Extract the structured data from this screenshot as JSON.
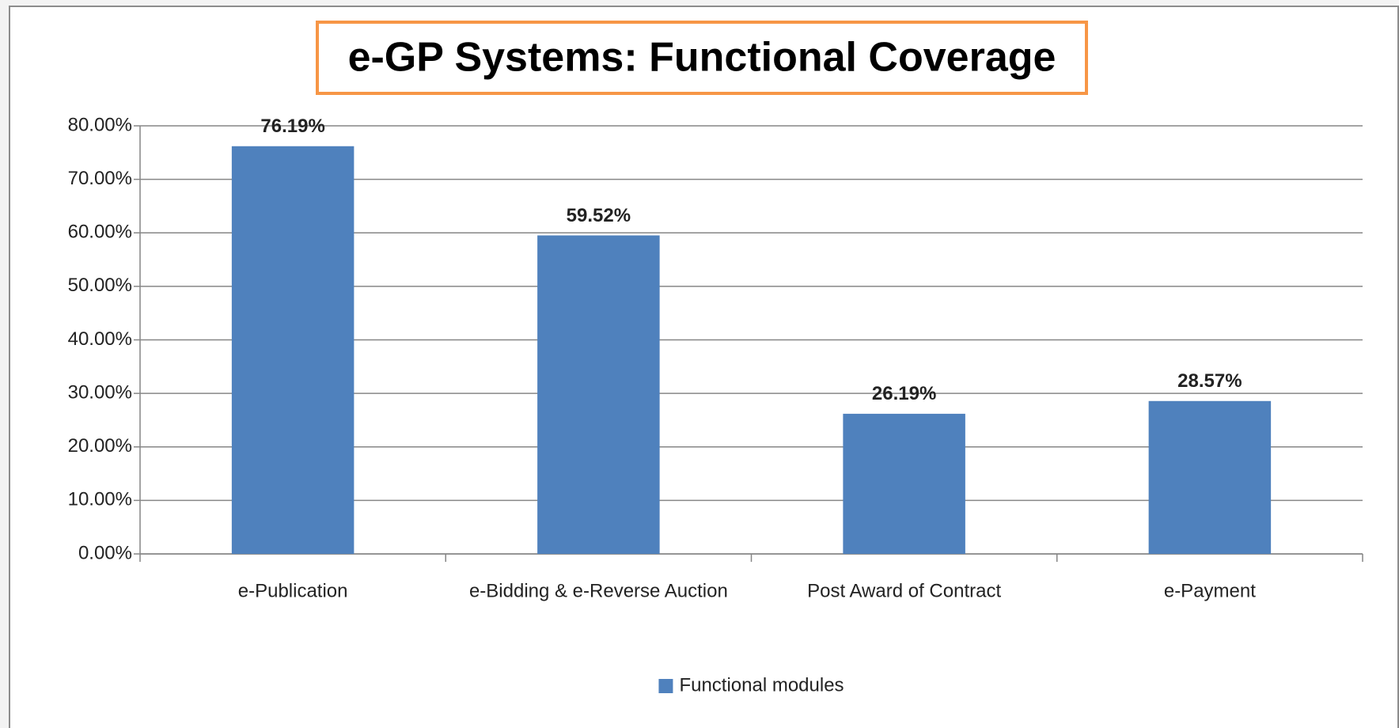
{
  "chart_data": {
    "type": "bar",
    "title": "e-GP Systems: Functional Coverage",
    "categories": [
      "e-Publication",
      "e-Bidding & e-Reverse Auction",
      "Post Award of Contract",
      "e-Payment"
    ],
    "series": [
      {
        "name": "Functional modules",
        "color": "#4f81bd",
        "values": [
          76.19,
          59.52,
          26.19,
          28.57
        ],
        "value_labels": [
          "76.19%",
          "59.52%",
          "26.19%",
          "28.57%"
        ]
      }
    ],
    "ylim": [
      0,
      80
    ],
    "yticks": [
      {
        "value": 0,
        "label": "0.00%"
      },
      {
        "value": 10,
        "label": "10.00%"
      },
      {
        "value": 20,
        "label": "20.00%"
      },
      {
        "value": 30,
        "label": "30.00%"
      },
      {
        "value": 40,
        "label": "40.00%"
      },
      {
        "value": 50,
        "label": "50.00%"
      },
      {
        "value": 60,
        "label": "60.00%"
      },
      {
        "value": 70,
        "label": "70.00%"
      },
      {
        "value": 80,
        "label": "80.00%"
      }
    ],
    "grid": true,
    "legend": "bottom"
  }
}
